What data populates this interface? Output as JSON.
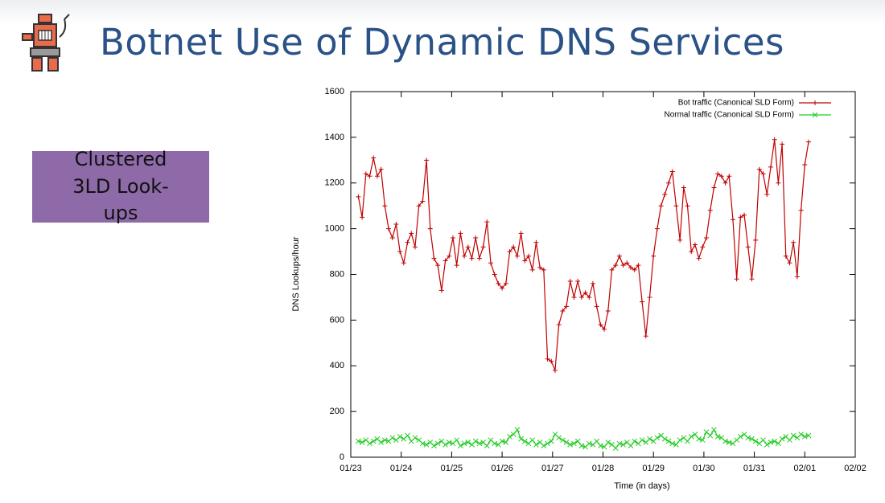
{
  "slide": {
    "title": "Botnet Use of Dynamic DNS Services",
    "box": "Clustered 3LD Look-ups"
  },
  "chart_data": {
    "type": "line",
    "xlabel": "Time (in days)",
    "ylabel": "DNS Lookups/hour",
    "xlim": [
      0,
      10
    ],
    "ylim": [
      0,
      1600
    ],
    "xticks": [
      {
        "value": 0,
        "label": "01/23"
      },
      {
        "value": 1,
        "label": "01/24"
      },
      {
        "value": 2,
        "label": "01/25"
      },
      {
        "value": 3,
        "label": "01/26"
      },
      {
        "value": 4,
        "label": "01/27"
      },
      {
        "value": 5,
        "label": "01/28"
      },
      {
        "value": 6,
        "label": "01/29"
      },
      {
        "value": 7,
        "label": "01/30"
      },
      {
        "value": 8,
        "label": "01/31"
      },
      {
        "value": 9,
        "label": "02/01"
      },
      {
        "value": 10,
        "label": "02/02"
      }
    ],
    "yticks": [
      0,
      200,
      400,
      600,
      800,
      1000,
      1200,
      1400,
      1600
    ],
    "legend": "top-right",
    "x": [
      0.15,
      0.225,
      0.3,
      0.375,
      0.45,
      0.525,
      0.6,
      0.675,
      0.75,
      0.825,
      0.9,
      0.975,
      1.05,
      1.125,
      1.2,
      1.275,
      1.35,
      1.425,
      1.5,
      1.575,
      1.65,
      1.725,
      1.8,
      1.875,
      1.95,
      2.025,
      2.1,
      2.175,
      2.25,
      2.325,
      2.4,
      2.475,
      2.55,
      2.625,
      2.7,
      2.775,
      2.85,
      2.925,
      3.0,
      3.075,
      3.15,
      3.225,
      3.3,
      3.375,
      3.45,
      3.525,
      3.6,
      3.675,
      3.75,
      3.825,
      3.9,
      3.975,
      4.05,
      4.125,
      4.2,
      4.275,
      4.35,
      4.425,
      4.5,
      4.575,
      4.65,
      4.725,
      4.8,
      4.875,
      4.95,
      5.025,
      5.1,
      5.175,
      5.25,
      5.325,
      5.4,
      5.475,
      5.55,
      5.625,
      5.7,
      5.775,
      5.85,
      5.925,
      6.0,
      6.075,
      6.15,
      6.225,
      6.3,
      6.375,
      6.45,
      6.525,
      6.6,
      6.675,
      6.75,
      6.825,
      6.9,
      6.975,
      7.05,
      7.125,
      7.2,
      7.275,
      7.35,
      7.425,
      7.5,
      7.575,
      7.65,
      7.725,
      7.8,
      7.875,
      7.95,
      8.025,
      8.1,
      8.175,
      8.25,
      8.325,
      8.4,
      8.475,
      8.55,
      8.625,
      8.7,
      8.775,
      8.85,
      8.925,
      9.0,
      9.075
    ],
    "series": [
      {
        "name": "Bot traffic (Canonical SLD Form)",
        "color": "#c00000",
        "marker": "plus",
        "values": [
          1140,
          1050,
          1240,
          1230,
          1310,
          1230,
          1260,
          1100,
          1000,
          960,
          1020,
          900,
          850,
          940,
          980,
          920,
          1100,
          1120,
          1300,
          1000,
          870,
          840,
          730,
          860,
          880,
          960,
          840,
          980,
          880,
          920,
          870,
          960,
          870,
          920,
          1030,
          850,
          800,
          760,
          740,
          760,
          900,
          920,
          880,
          980,
          860,
          880,
          820,
          940,
          830,
          820,
          430,
          420,
          380,
          580,
          640,
          660,
          770,
          700,
          770,
          700,
          720,
          700,
          760,
          660,
          580,
          560,
          640,
          820,
          840,
          880,
          840,
          850,
          830,
          820,
          840,
          680,
          530,
          700,
          880,
          1000,
          1100,
          1150,
          1200,
          1250,
          1100,
          950,
          1180,
          1100,
          900,
          930,
          870,
          920,
          960,
          1080,
          1180,
          1240,
          1230,
          1200,
          1230,
          1040,
          780,
          1050,
          1060,
          920,
          780,
          950,
          1260,
          1240,
          1150,
          1270,
          1390,
          1200,
          1370,
          880,
          850,
          940,
          790,
          1080,
          1280,
          1380
        ]
      },
      {
        "name": "Normal traffic (Canonical SLD Form)",
        "color": "#22cc22",
        "marker": "cross",
        "values": [
          70,
          65,
          75,
          60,
          70,
          80,
          65,
          75,
          70,
          85,
          75,
          90,
          80,
          95,
          70,
          85,
          75,
          60,
          55,
          65,
          50,
          60,
          70,
          55,
          65,
          60,
          75,
          50,
          60,
          65,
          55,
          70,
          60,
          65,
          50,
          75,
          60,
          55,
          70,
          65,
          90,
          100,
          120,
          80,
          70,
          60,
          75,
          55,
          65,
          50,
          60,
          70,
          100,
          85,
          75,
          65,
          55,
          60,
          70,
          50,
          45,
          60,
          55,
          70,
          50,
          45,
          65,
          55,
          40,
          60,
          55,
          65,
          50,
          70,
          60,
          75,
          65,
          80,
          70,
          85,
          95,
          80,
          70,
          60,
          55,
          75,
          85,
          70,
          90,
          100,
          80,
          75,
          110,
          95,
          120,
          90,
          85,
          70,
          65,
          60,
          75,
          90,
          100,
          85,
          80,
          70,
          60,
          75,
          55,
          65,
          70,
          60,
          80,
          90,
          75,
          95,
          85,
          100,
          90,
          95
        ]
      }
    ]
  }
}
